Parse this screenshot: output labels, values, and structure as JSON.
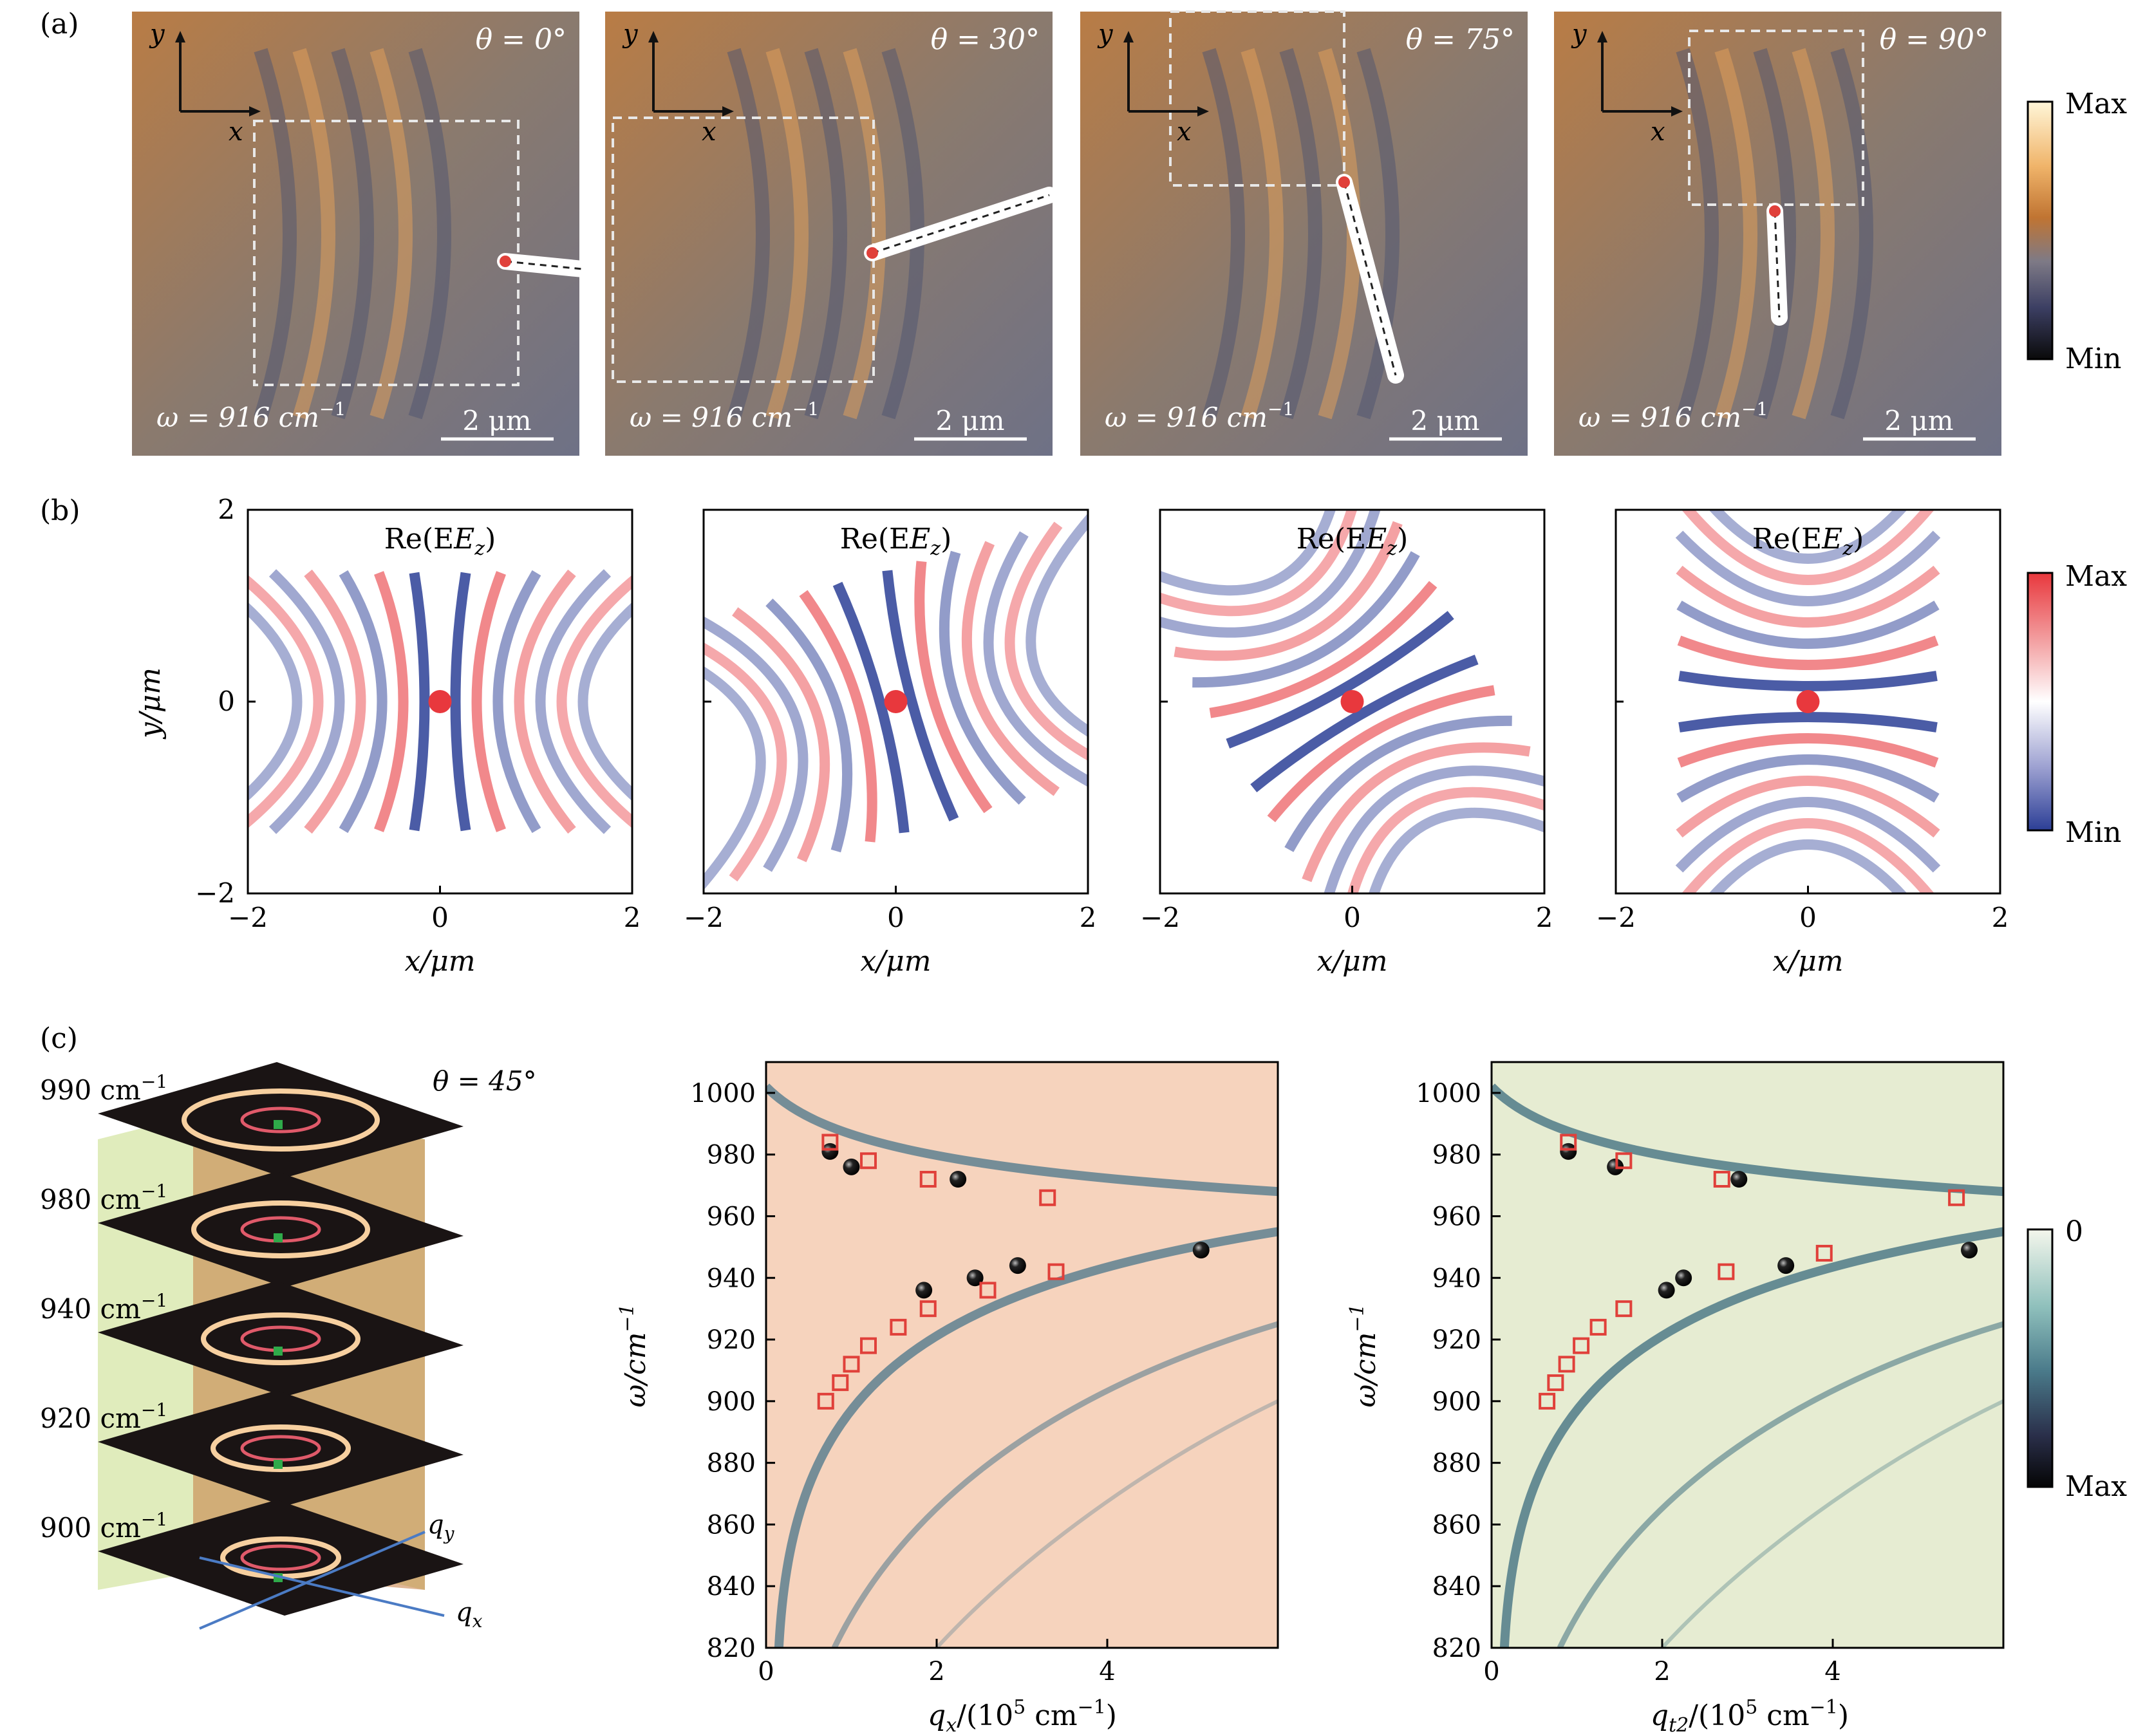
{
  "panel_labels": [
    "(a)",
    "(b)",
    "(c)"
  ],
  "panel_a": {
    "images": [
      {
        "axis_y": "y",
        "axis_x": "x",
        "theta": "θ = 0°",
        "omega": "ω = 916 cm",
        "omega_exp": "−1",
        "scalebar": "2 μm"
      },
      {
        "axis_y": "y",
        "axis_x": "x",
        "theta": "θ = 30°",
        "omega": "ω = 916 cm",
        "omega_exp": "−1",
        "scalebar": "2 μm"
      },
      {
        "axis_y": "y",
        "axis_x": "x",
        "theta": "θ = 75°",
        "omega": "ω = 916 cm",
        "omega_exp": "−1",
        "scalebar": "2 μm"
      },
      {
        "axis_y": "y",
        "axis_x": "x",
        "theta": "θ = 90°",
        "omega": "ω = 916 cm",
        "omega_exp": "−1",
        "scalebar": "2 μm"
      }
    ],
    "colorbar": {
      "max": "Max",
      "min": "Min",
      "colors": [
        "#fff6d8",
        "#f0b46a",
        "#c07432",
        "#7e7a86",
        "#3c3f63",
        "#0a0a0a"
      ]
    }
  },
  "panel_b": {
    "title": "Re(E",
    "title_sub": "z",
    "title_close": ")",
    "ylabel": "y/μm",
    "xlabel": "x/μm",
    "xticks": [
      "−2",
      "0",
      "2"
    ],
    "yticks": [
      "2",
      "0",
      "−2"
    ],
    "colorbar": {
      "max": "Max",
      "min": "Min",
      "colors": [
        "#e8383d",
        "#f29a9c",
        "#ffffff",
        "#9fa3d2",
        "#2c3f96"
      ]
    }
  },
  "panel_c": {
    "stack": {
      "levels": [
        "990 cm",
        "980 cm",
        "940 cm",
        "920 cm",
        "900 cm"
      ],
      "level_exp": "−1",
      "theta": "θ = 45°",
      "qy": "q",
      "qy_sub": "y",
      "qx": "q",
      "qx_sub": "x"
    },
    "charts_meta": {
      "left_xlabel": "q",
      "left_xlabel_sub": "x",
      "left_xlabel_tail": "/(10",
      "right_xlabel": "q",
      "right_xlabel_sub": "t2",
      "right_xlabel_tail": "/(10",
      "xlabel_sup": "5",
      "xlabel_end": " cm",
      "xlabel_end_sup": "−1",
      "xlabel_close": ")",
      "ylabel": "ω/cm",
      "ylabel_sup": "−1",
      "colorbar": {
        "top": "0",
        "bottom": "Max",
        "colors": [
          "#f4f6ec",
          "#8fc0bc",
          "#4a7a8a",
          "#2a2f4a",
          "#050505"
        ]
      }
    }
  },
  "chart_data": [
    {
      "type": "scatter",
      "title": "",
      "xlabel": "qx/(10^5 cm^-1)",
      "ylabel": "ω/cm^-1",
      "xlim": [
        0,
        6
      ],
      "ylim": [
        820,
        1010
      ],
      "xticks": [
        0,
        2,
        4
      ],
      "yticks": [
        820,
        840,
        860,
        880,
        900,
        920,
        940,
        960,
        980,
        1000
      ],
      "background": "#f6d3bd",
      "series": [
        {
          "marker": "circle",
          "color": "#111111",
          "x": [
            0.75,
            1.0,
            2.25,
            1.85,
            2.45,
            2.95,
            5.1
          ],
          "y": [
            981,
            976,
            972,
            936,
            940,
            944,
            949
          ]
        },
        {
          "marker": "square-open",
          "color": "#e0403a",
          "x": [
            0.75,
            1.2,
            1.9,
            3.3,
            0.7,
            0.87,
            1.0,
            1.2,
            1.55,
            1.9,
            2.6,
            3.4
          ],
          "y": [
            984,
            978,
            972,
            966,
            900,
            906,
            912,
            918,
            924,
            930,
            936,
            942
          ]
        }
      ]
    },
    {
      "type": "scatter",
      "title": "",
      "xlabel": "qt2/(10^5 cm^-1)",
      "ylabel": "ω/cm^-1",
      "xlim": [
        0,
        6
      ],
      "ylim": [
        820,
        1010
      ],
      "xticks": [
        0,
        2,
        4
      ],
      "yticks": [
        820,
        840,
        860,
        880,
        900,
        920,
        940,
        960,
        980,
        1000
      ],
      "background": "#e6ecd2",
      "series": [
        {
          "marker": "circle",
          "color": "#111111",
          "x": [
            0.9,
            1.45,
            2.9,
            2.05,
            2.25,
            3.45,
            5.6
          ],
          "y": [
            981,
            976,
            972,
            936,
            940,
            944,
            949
          ]
        },
        {
          "marker": "square-open",
          "color": "#e0403a",
          "x": [
            0.9,
            1.55,
            2.7,
            5.45,
            0.65,
            0.75,
            0.88,
            1.05,
            1.25,
            1.55,
            2.75,
            3.9
          ],
          "y": [
            984,
            978,
            972,
            966,
            900,
            906,
            912,
            918,
            924,
            930,
            942,
            948
          ]
        }
      ]
    }
  ]
}
